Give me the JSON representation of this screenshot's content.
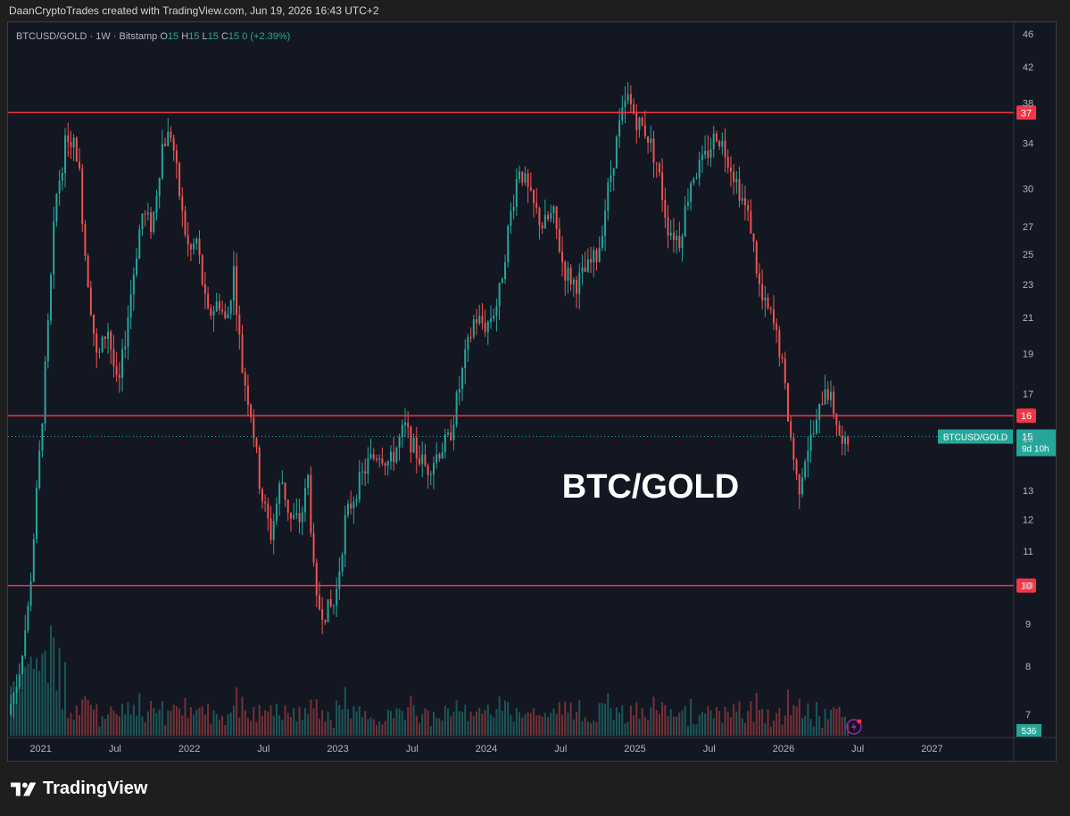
{
  "header": {
    "credit": "DaanCryptoTrades created with TradingView.com, Jun 19, 2026 16:43 UTC+2"
  },
  "legend": {
    "symbol": "BTCUSD/GOLD · 1W · Bitstamp",
    "o_label": "O",
    "o_value": "15",
    "h_label": "H",
    "h_value": "15",
    "l_label": "L",
    "l_value": "15",
    "c_label": "C",
    "c_value": "15",
    "change": "0 (+2.39%)"
  },
  "footer": {
    "brand": "TradingView"
  },
  "colors": {
    "up": "#26a69a",
    "down": "#ef5350",
    "level": "#f23645",
    "background": "#131722"
  },
  "icons": {
    "footer_logo": "tradingview-logo-icon",
    "flash": "lightning-icon"
  },
  "chart_data": {
    "type": "candlestick",
    "title": "",
    "annotation": "BTC/GOLD",
    "timeframe": "1W",
    "price_scale": "log",
    "y_ticks": [
      46,
      42,
      38,
      34,
      30,
      27,
      25,
      23,
      21,
      19,
      17,
      15,
      13,
      12,
      11,
      10,
      9,
      8,
      7
    ],
    "x_ticks": [
      {
        "label": "2021",
        "t": 2021.0
      },
      {
        "label": "Jul",
        "t": 2021.5
      },
      {
        "label": "2022",
        "t": 2022.0
      },
      {
        "label": "Jul",
        "t": 2022.5
      },
      {
        "label": "2023",
        "t": 2023.0
      },
      {
        "label": "Jul",
        "t": 2023.5
      },
      {
        "label": "2024",
        "t": 2024.0
      },
      {
        "label": "Jul",
        "t": 2024.5
      },
      {
        "label": "2025",
        "t": 2025.0
      },
      {
        "label": "Jul",
        "t": 2025.5
      },
      {
        "label": "2026",
        "t": 2026.0
      },
      {
        "label": "Jul",
        "t": 2026.5
      },
      {
        "label": "2027",
        "t": 2027.0
      }
    ],
    "x_range": [
      2020.78,
      2027.55
    ],
    "y_range": [
      6.6,
      47.5
    ],
    "horizontal_levels": [
      {
        "label": "37",
        "value": 37
      },
      {
        "label": "16",
        "value": 16
      },
      {
        "label": "10",
        "value": 10
      }
    ],
    "last_price": {
      "symbol": "BTCUSD/GOLD",
      "value": "15",
      "countdown": "9d 10h",
      "level": 15.1
    },
    "volume_label": "536",
    "close_path": [
      [
        2020.78,
        7.0
      ],
      [
        2020.85,
        7.8
      ],
      [
        2020.92,
        9.5
      ],
      [
        2021.0,
        15.0
      ],
      [
        2021.05,
        20.5
      ],
      [
        2021.1,
        29.0
      ],
      [
        2021.18,
        35.0
      ],
      [
        2021.25,
        33.0
      ],
      [
        2021.3,
        25.0
      ],
      [
        2021.38,
        18.5
      ],
      [
        2021.45,
        20.5
      ],
      [
        2021.52,
        17.0
      ],
      [
        2021.6,
        22.0
      ],
      [
        2021.68,
        28.0
      ],
      [
        2021.75,
        27.0
      ],
      [
        2021.82,
        34.0
      ],
      [
        2021.88,
        35.0
      ],
      [
        2021.95,
        28.0
      ],
      [
        2022.0,
        25.0
      ],
      [
        2022.05,
        26.0
      ],
      [
        2022.12,
        21.0
      ],
      [
        2022.2,
        22.0
      ],
      [
        2022.25,
        20.5
      ],
      [
        2022.3,
        24.0
      ],
      [
        2022.35,
        18.5
      ],
      [
        2022.42,
        16.0
      ],
      [
        2022.48,
        13.0
      ],
      [
        2022.55,
        11.5
      ],
      [
        2022.62,
        13.5
      ],
      [
        2022.68,
        12.0
      ],
      [
        2022.75,
        12.0
      ],
      [
        2022.8,
        13.5
      ],
      [
        2022.85,
        9.5
      ],
      [
        2022.92,
        9.3
      ],
      [
        2022.98,
        9.5
      ],
      [
        2023.05,
        12.0
      ],
      [
        2023.12,
        13.0
      ],
      [
        2023.2,
        14.0
      ],
      [
        2023.28,
        14.5
      ],
      [
        2023.35,
        14.0
      ],
      [
        2023.45,
        15.5
      ],
      [
        2023.52,
        14.5
      ],
      [
        2023.6,
        13.8
      ],
      [
        2023.68,
        14.5
      ],
      [
        2023.75,
        15.0
      ],
      [
        2023.85,
        18.5
      ],
      [
        2023.92,
        21.0
      ],
      [
        2024.0,
        20.5
      ],
      [
        2024.08,
        22.0
      ],
      [
        2024.15,
        27.0
      ],
      [
        2024.22,
        32.0
      ],
      [
        2024.3,
        29.0
      ],
      [
        2024.38,
        27.0
      ],
      [
        2024.45,
        28.0
      ],
      [
        2024.52,
        24.0
      ],
      [
        2024.6,
        23.0
      ],
      [
        2024.68,
        24.0
      ],
      [
        2024.75,
        25.0
      ],
      [
        2024.82,
        30.0
      ],
      [
        2024.9,
        36.0
      ],
      [
        2024.95,
        38.5
      ],
      [
        2025.02,
        36.0
      ],
      [
        2025.08,
        35.0
      ],
      [
        2025.15,
        32.0
      ],
      [
        2025.22,
        27.0
      ],
      [
        2025.3,
        26.0
      ],
      [
        2025.38,
        31.0
      ],
      [
        2025.45,
        32.0
      ],
      [
        2025.55,
        35.0
      ],
      [
        2025.62,
        33.0
      ],
      [
        2025.7,
        30.0
      ],
      [
        2025.78,
        27.0
      ],
      [
        2025.85,
        22.0
      ],
      [
        2025.92,
        21.0
      ],
      [
        2025.98,
        19.0
      ],
      [
        2026.05,
        15.0
      ],
      [
        2026.1,
        13.0
      ],
      [
        2026.15,
        14.5
      ],
      [
        2026.22,
        15.5
      ],
      [
        2026.28,
        17.5
      ],
      [
        2026.35,
        16.0
      ],
      [
        2026.4,
        14.5
      ],
      [
        2026.45,
        15.1
      ]
    ]
  }
}
